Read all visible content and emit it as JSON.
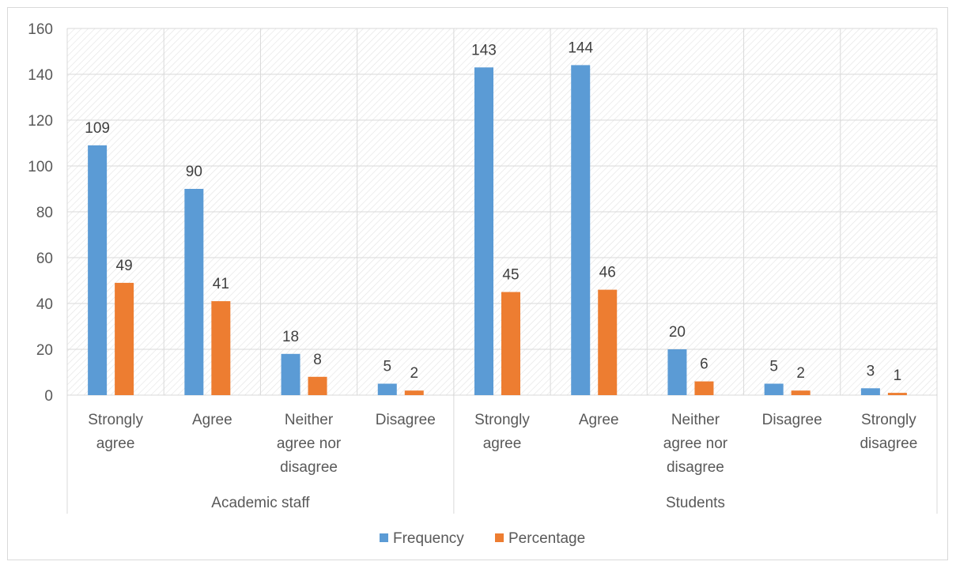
{
  "chart_data": {
    "type": "bar",
    "title": "",
    "xlabel": "",
    "ylabel": "",
    "ylim": [
      0,
      160
    ],
    "yticks": [
      0,
      20,
      40,
      60,
      80,
      100,
      120,
      140,
      160
    ],
    "grid": true,
    "legend_position": "bottom",
    "groups": [
      {
        "label": "Academic staff",
        "categories": [
          [
            "Strongly",
            "agree"
          ],
          [
            "Agree"
          ],
          [
            "Neither",
            "agree nor",
            "disagree"
          ],
          [
            "Disagree"
          ]
        ]
      },
      {
        "label": "Students",
        "categories": [
          [
            "Strongly",
            "agree"
          ],
          [
            "Agree"
          ],
          [
            "Neither",
            "agree nor",
            "disagree"
          ],
          [
            "Disagree"
          ],
          [
            "Strongly",
            "disagree"
          ]
        ]
      }
    ],
    "series": [
      {
        "name": "Frequency",
        "color": "#5b9bd5",
        "values": [
          109,
          90,
          18,
          5,
          143,
          144,
          20,
          5,
          3
        ]
      },
      {
        "name": "Percentage",
        "color": "#ed7d31",
        "values": [
          49,
          41,
          8,
          2,
          45,
          46,
          6,
          2,
          1
        ]
      }
    ]
  }
}
